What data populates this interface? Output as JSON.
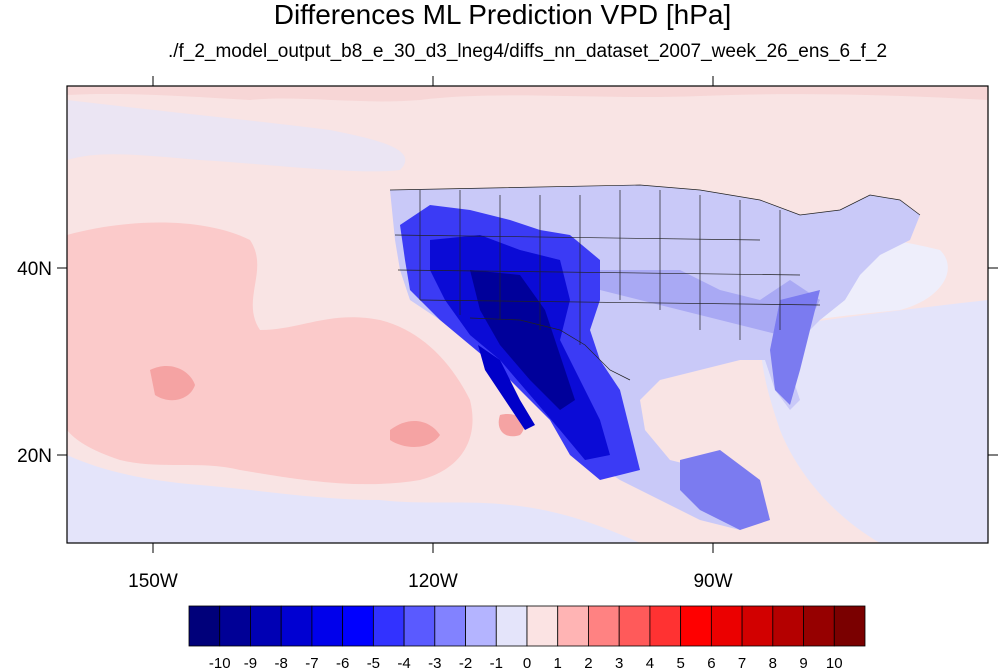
{
  "title": "Differences ML Prediction VPD [hPa]",
  "subtitle": "./f_2_model_output_b8_e_30_d3_lneg4/diffs_nn_dataset_2007_week_26_ens_6_f_2",
  "lat_labels": [
    "40N",
    "20N"
  ],
  "lon_labels": [
    "150W",
    "120W",
    "90W"
  ],
  "colorbar": {
    "labels": [
      "-10",
      "-9",
      "-8",
      "-7",
      "-6",
      "-5",
      "-4",
      "-3",
      "-2",
      "-1",
      "0",
      "1",
      "2",
      "3",
      "4",
      "5",
      "6",
      "7",
      "8",
      "9",
      "10"
    ],
    "colors": [
      "#00007a",
      "#000096",
      "#0000b4",
      "#0000d2",
      "#0000eb",
      "#0000ff",
      "#3232ff",
      "#5a5aff",
      "#8282ff",
      "#b4b4ff",
      "#e4e4fa",
      "#fbe3e3",
      "#ffb4b4",
      "#ff8282",
      "#ff5a5a",
      "#ff3232",
      "#ff0000",
      "#eb0000",
      "#d20000",
      "#b40000",
      "#960000",
      "#7a0000"
    ]
  },
  "chart_data": {
    "type": "heatmap",
    "variable": "Differences ML Prediction VPD [hPa]",
    "x_ticks": [
      "150W",
      "120W",
      "90W"
    ],
    "y_ticks": [
      "40N",
      "20N"
    ],
    "color_levels": [
      -10,
      -9,
      -8,
      -7,
      -6,
      -5,
      -4,
      -3,
      -2,
      -1,
      0,
      1,
      2,
      3,
      4,
      5,
      6,
      7,
      8,
      9,
      10
    ]
  }
}
